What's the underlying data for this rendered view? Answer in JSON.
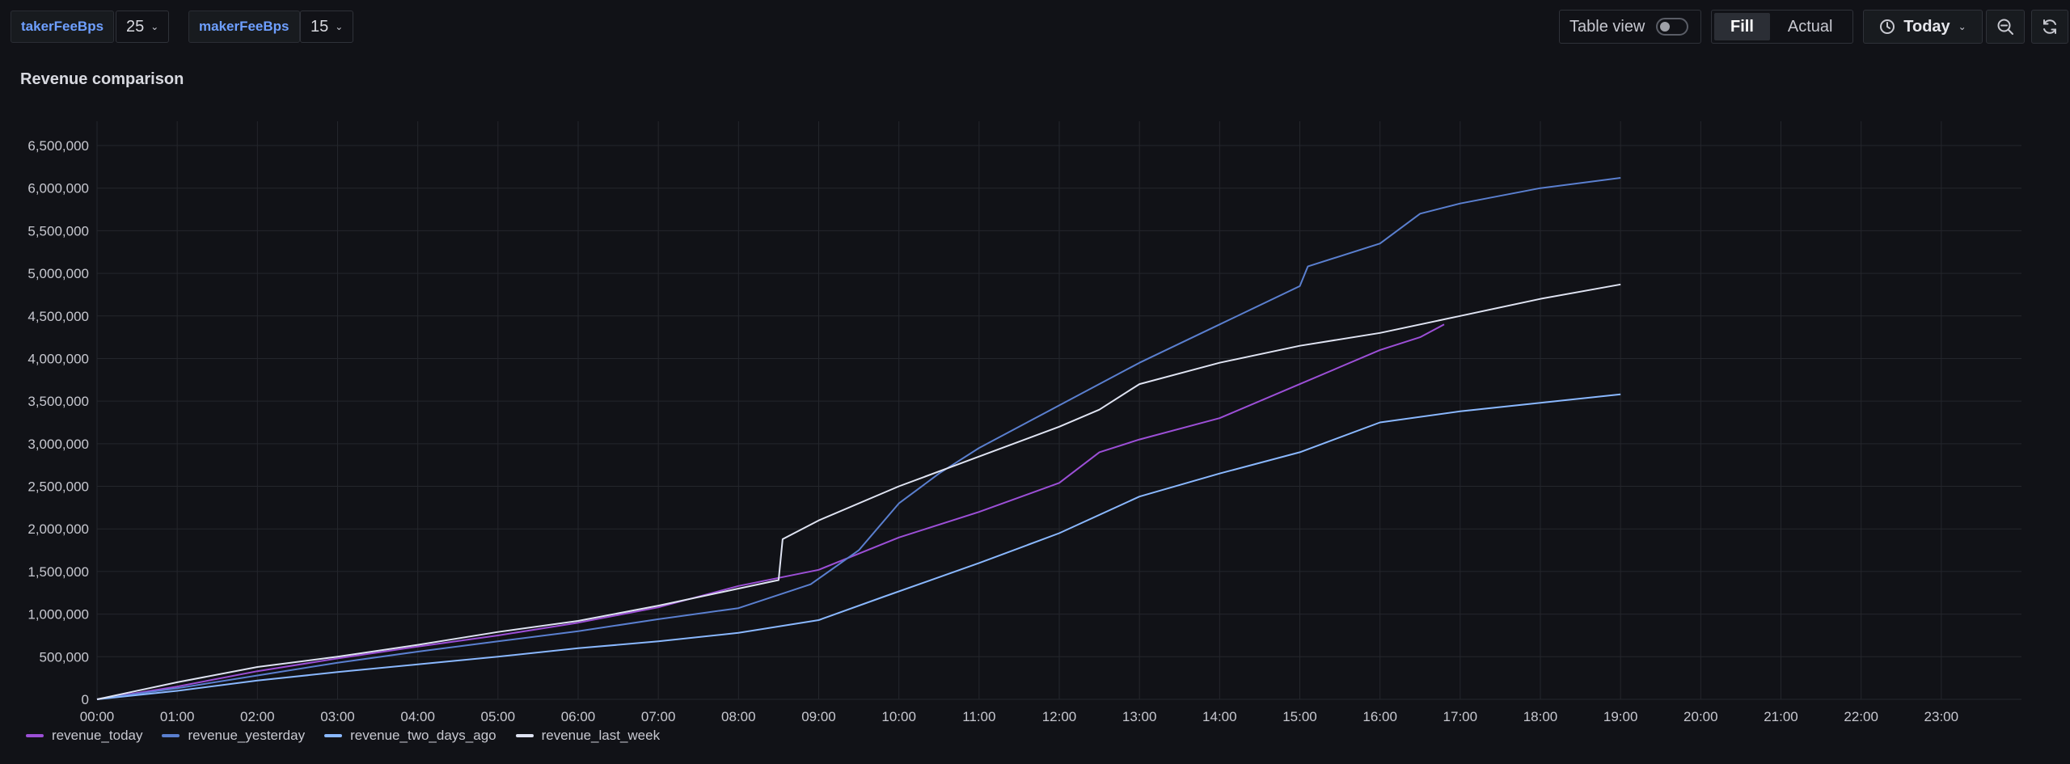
{
  "variables": [
    {
      "name": "takerFeeBps",
      "value": "25"
    },
    {
      "name": "makerFeeBps",
      "value": "15"
    }
  ],
  "toolbar": {
    "table_view_label": "Table view",
    "fill_label": "Fill",
    "actual_label": "Actual",
    "time_range_label": "Today",
    "clock_icon": "clock-icon",
    "zoom_out_icon": "zoom-out-icon",
    "refresh_icon": "refresh-icon"
  },
  "panel": {
    "title": "Revenue comparison"
  },
  "colors": {
    "background": "#111217",
    "grid": "#24262c",
    "revenue_today": "#9c4fd6",
    "revenue_yesterday": "#5a7fcf",
    "revenue_two_days_ago": "#8ab8ff",
    "revenue_last_week": "#dfe3f2"
  },
  "chart_data": {
    "type": "line",
    "title": "Revenue comparison",
    "xlabel": "",
    "ylabel": "",
    "x_ticks": [
      "00:00",
      "01:00",
      "02:00",
      "03:00",
      "04:00",
      "05:00",
      "06:00",
      "07:00",
      "08:00",
      "09:00",
      "10:00",
      "11:00",
      "12:00",
      "13:00",
      "14:00",
      "15:00",
      "16:00",
      "17:00",
      "18:00",
      "19:00",
      "20:00",
      "21:00",
      "22:00",
      "23:00"
    ],
    "y_ticks": [
      "0",
      "500,000",
      "1,000,000",
      "1,500,000",
      "2,000,000",
      "2,500,000",
      "3,000,000",
      "3,500,000",
      "4,000,000",
      "4,500,000",
      "5,000,000",
      "5,500,000",
      "6,000,000",
      "6,500,000"
    ],
    "xlim": [
      0,
      24
    ],
    "ylim": [
      0,
      6500000
    ],
    "grid": true,
    "legend": "bottom-left",
    "series": [
      {
        "name": "revenue_today",
        "color_key": "revenue_today",
        "points": [
          [
            0,
            0
          ],
          [
            1,
            150000
          ],
          [
            2,
            330000
          ],
          [
            3,
            480000
          ],
          [
            4,
            620000
          ],
          [
            5,
            750000
          ],
          [
            6,
            900000
          ],
          [
            7,
            1080000
          ],
          [
            8,
            1330000
          ],
          [
            9,
            1520000
          ],
          [
            10,
            1900000
          ],
          [
            11,
            2200000
          ],
          [
            12,
            2540000
          ],
          [
            12.5,
            2900000
          ],
          [
            13,
            3050000
          ],
          [
            14,
            3300000
          ],
          [
            15,
            3700000
          ],
          [
            16,
            4100000
          ],
          [
            16.5,
            4250000
          ],
          [
            16.8,
            4400000
          ]
        ]
      },
      {
        "name": "revenue_yesterday",
        "color_key": "revenue_yesterday",
        "points": [
          [
            0,
            0
          ],
          [
            1,
            130000
          ],
          [
            2,
            280000
          ],
          [
            3,
            430000
          ],
          [
            4,
            560000
          ],
          [
            5,
            680000
          ],
          [
            6,
            800000
          ],
          [
            7,
            940000
          ],
          [
            8,
            1070000
          ],
          [
            8.9,
            1350000
          ],
          [
            9.5,
            1750000
          ],
          [
            10,
            2300000
          ],
          [
            10.5,
            2650000
          ],
          [
            11,
            2950000
          ],
          [
            12,
            3450000
          ],
          [
            13,
            3950000
          ],
          [
            14,
            4400000
          ],
          [
            15,
            4850000
          ],
          [
            15.1,
            5080000
          ],
          [
            16,
            5350000
          ],
          [
            16.5,
            5700000
          ],
          [
            17,
            5820000
          ],
          [
            18,
            6000000
          ],
          [
            19,
            6120000
          ]
        ]
      },
      {
        "name": "revenue_two_days_ago",
        "color_key": "revenue_two_days_ago",
        "points": [
          [
            0,
            0
          ],
          [
            1,
            100000
          ],
          [
            2,
            220000
          ],
          [
            3,
            320000
          ],
          [
            4,
            410000
          ],
          [
            5,
            500000
          ],
          [
            6,
            600000
          ],
          [
            7,
            680000
          ],
          [
            8,
            780000
          ],
          [
            9,
            930000
          ],
          [
            9.8,
            1200000
          ],
          [
            11,
            1600000
          ],
          [
            12,
            1950000
          ],
          [
            13,
            2380000
          ],
          [
            14,
            2650000
          ],
          [
            15,
            2900000
          ],
          [
            16,
            3250000
          ],
          [
            17,
            3380000
          ],
          [
            18,
            3480000
          ],
          [
            19,
            3580000
          ]
        ]
      },
      {
        "name": "revenue_last_week",
        "color_key": "revenue_last_week",
        "points": [
          [
            0,
            0
          ],
          [
            1,
            200000
          ],
          [
            2,
            380000
          ],
          [
            3,
            500000
          ],
          [
            4,
            640000
          ],
          [
            5,
            790000
          ],
          [
            6,
            920000
          ],
          [
            7,
            1100000
          ],
          [
            8,
            1300000
          ],
          [
            8.5,
            1400000
          ],
          [
            8.55,
            1880000
          ],
          [
            9,
            2100000
          ],
          [
            10,
            2500000
          ],
          [
            11,
            2850000
          ],
          [
            12,
            3200000
          ],
          [
            12.5,
            3400000
          ],
          [
            13,
            3700000
          ],
          [
            14,
            3950000
          ],
          [
            15,
            4150000
          ],
          [
            16,
            4300000
          ],
          [
            17,
            4500000
          ],
          [
            18,
            4700000
          ],
          [
            19,
            4870000
          ]
        ]
      }
    ]
  }
}
